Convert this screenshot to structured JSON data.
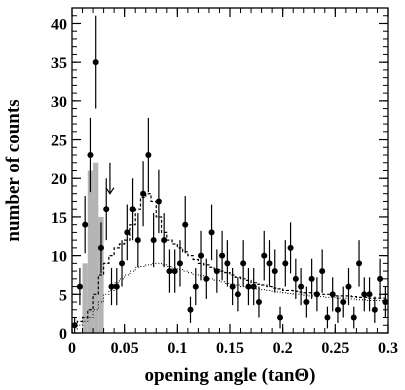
{
  "chart_data": {
    "type": "scatter",
    "title": "",
    "xlabel": "opening angle (tanΘ)",
    "ylabel": "number of counts",
    "xlim": [
      0,
      0.3
    ],
    "ylim": [
      0,
      42
    ],
    "x_major_ticks": [
      0,
      0.05,
      0.1,
      0.15,
      0.2,
      0.25,
      0.3
    ],
    "x_tick_labels": [
      "0",
      "0.05",
      "0.1",
      "0.15",
      "0.2",
      "0.25",
      "0.3"
    ],
    "y_major_ticks": [
      0,
      5,
      10,
      15,
      20,
      25,
      30,
      35,
      40
    ],
    "y_tick_labels": [
      "0",
      "5",
      "10",
      "15",
      "20",
      "25",
      "30",
      "35",
      "40"
    ],
    "grid": false,
    "legend": "none",
    "colors": {
      "points": "#000000",
      "shaded": "#b4b4b4",
      "axes": "#000000"
    },
    "marker_arrow_x": 0.036,
    "marker_arrow_y": [
      22,
      18
    ],
    "series": [
      {
        "kind": "points_with_errors",
        "x": [
          0.0025,
          0.0075,
          0.0125,
          0.0175,
          0.0225,
          0.0275,
          0.0325,
          0.0375,
          0.0425,
          0.0475,
          0.0525,
          0.0575,
          0.0625,
          0.0675,
          0.0725,
          0.0775,
          0.0825,
          0.0875,
          0.0925,
          0.0975,
          0.1025,
          0.1075,
          0.1125,
          0.1175,
          0.1225,
          0.1275,
          0.1325,
          0.1375,
          0.1425,
          0.1475,
          0.1525,
          0.1575,
          0.1625,
          0.1675,
          0.1725,
          0.1775,
          0.1825,
          0.1875,
          0.1925,
          0.1975,
          0.2025,
          0.2075,
          0.2125,
          0.2175,
          0.2225,
          0.2275,
          0.2325,
          0.2375,
          0.2425,
          0.2475,
          0.2525,
          0.2575,
          0.2625,
          0.2675,
          0.2725,
          0.2775,
          0.2825,
          0.2875,
          0.2925,
          0.2975
        ],
        "y": [
          1,
          6,
          14,
          23,
          35,
          11,
          16,
          6,
          6,
          9,
          13,
          16,
          12,
          18,
          23,
          12,
          17,
          12,
          8,
          8,
          9,
          14,
          3,
          6,
          10,
          7,
          13,
          8,
          10,
          9,
          6,
          5,
          9,
          6,
          6,
          4,
          10,
          9,
          8,
          2,
          9,
          11,
          7,
          6,
          4,
          7,
          5,
          8,
          2,
          5,
          3,
          4,
          6,
          2,
          9,
          5,
          5,
          3,
          7,
          4
        ],
        "yerr": [
          1,
          2.4,
          3.7,
          4.8,
          6,
          3.3,
          4,
          2.4,
          2.4,
          3,
          3.6,
          4,
          3.5,
          4.2,
          4.8,
          3.5,
          4.1,
          3.5,
          2.8,
          2.8,
          3,
          3.7,
          1.7,
          2.4,
          3.2,
          2.6,
          3.6,
          2.8,
          3.2,
          3,
          2.4,
          2.2,
          3,
          2.4,
          2.4,
          2,
          3.2,
          3,
          2.8,
          1.4,
          3,
          3.3,
          2.6,
          2.4,
          2,
          2.6,
          2.2,
          2.8,
          1.4,
          2.2,
          1.7,
          2,
          2.4,
          1.4,
          3,
          2.2,
          2.2,
          1.7,
          2.6,
          2
        ]
      },
      {
        "kind": "shaded_histogram",
        "bin_edges": [
          0.01,
          0.015,
          0.02,
          0.025,
          0.03
        ],
        "values": [
          9,
          21,
          22,
          15
        ]
      },
      {
        "kind": "dashed_histogram",
        "bin_edges": [
          0,
          0.005,
          0.01,
          0.015,
          0.02,
          0.025,
          0.03,
          0.035,
          0.04,
          0.045,
          0.05,
          0.055,
          0.06,
          0.065,
          0.07,
          0.075,
          0.08,
          0.085,
          0.09,
          0.095,
          0.1,
          0.105,
          0.11,
          0.115,
          0.12,
          0.125,
          0.13,
          0.135,
          0.14,
          0.145,
          0.15,
          0.155,
          0.16,
          0.165,
          0.17,
          0.175,
          0.18,
          0.185,
          0.19,
          0.195,
          0.2,
          0.205,
          0.21,
          0.215,
          0.22,
          0.225,
          0.23,
          0.235,
          0.24,
          0.245,
          0.25,
          0.255,
          0.26,
          0.265,
          0.27,
          0.275,
          0.28,
          0.285,
          0.29,
          0.295,
          0.3
        ],
        "values": [
          1,
          1.5,
          2,
          3,
          5,
          7.5,
          9,
          10,
          11,
          11.5,
          12,
          14,
          16,
          17.5,
          18,
          17,
          15,
          13,
          12,
          11.5,
          11,
          10.5,
          10,
          9.5,
          9,
          8.8,
          8.5,
          8.2,
          8,
          7.8,
          7.5,
          7.2,
          7,
          6.8,
          6.5,
          6.3,
          6.2,
          6,
          5.8,
          5.7,
          5.5,
          5.5,
          5.4,
          5.3,
          5.2,
          5.2,
          5,
          5,
          5,
          4.9,
          4.8,
          4.8,
          4.8,
          4.7,
          4.6,
          4.6,
          4.5,
          4.5,
          4.5,
          4.5
        ]
      },
      {
        "kind": "dotted_histogram",
        "bin_edges": [
          0,
          0.005,
          0.01,
          0.015,
          0.02,
          0.025,
          0.03,
          0.035,
          0.04,
          0.045,
          0.05,
          0.055,
          0.06,
          0.065,
          0.07,
          0.075,
          0.08,
          0.085,
          0.09,
          0.095,
          0.1,
          0.105,
          0.11,
          0.115,
          0.12,
          0.125,
          0.13,
          0.135,
          0.14,
          0.145,
          0.15,
          0.155,
          0.16,
          0.165,
          0.17,
          0.175,
          0.18,
          0.185,
          0.19,
          0.195,
          0.2,
          0.205,
          0.21,
          0.215,
          0.22,
          0.225,
          0.23,
          0.235,
          0.24,
          0.245,
          0.25,
          0.255,
          0.26,
          0.265,
          0.27,
          0.275,
          0.28,
          0.285,
          0.29,
          0.295,
          0.3
        ],
        "values": [
          0.5,
          1,
          1.5,
          2,
          3,
          4,
          5,
          5.5,
          6.5,
          7,
          7.5,
          8,
          8.5,
          8.6,
          8.8,
          9,
          9,
          8.8,
          8.6,
          8.4,
          8.2,
          8,
          7.8,
          7.6,
          7.4,
          7.2,
          7,
          6.8,
          6.6,
          6.4,
          6.3,
          6.2,
          6,
          5.9,
          5.8,
          5.7,
          5.6,
          5.5,
          5.4,
          5.3,
          5.2,
          5.1,
          5,
          5,
          4.9,
          4.8,
          4.8,
          4.7,
          4.6,
          4.6,
          4.5,
          4.5,
          4.4,
          4.4,
          4.3,
          4.3,
          4.2,
          4.2,
          4.2,
          4.1
        ]
      }
    ]
  }
}
